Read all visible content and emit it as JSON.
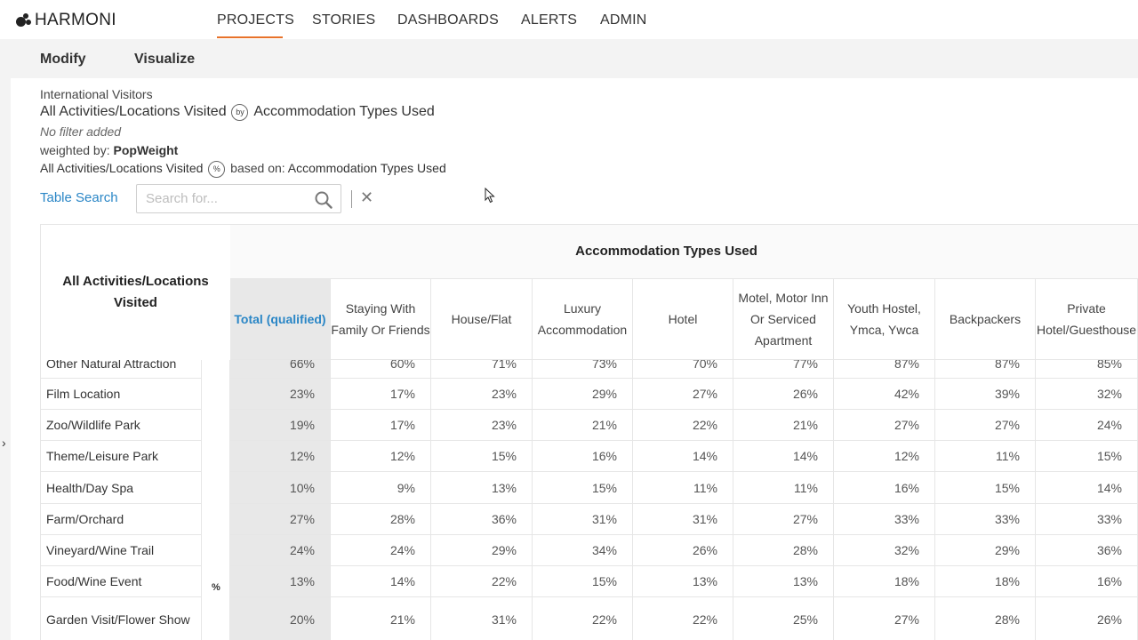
{
  "app": {
    "brand": "HARMONI",
    "accent_color": "#e8722a",
    "link_color": "#2a86c6"
  },
  "nav": {
    "items": [
      {
        "label": "PROJECTS",
        "active": true
      },
      {
        "label": "STORIES",
        "active": false
      },
      {
        "label": "DASHBOARDS",
        "active": false
      },
      {
        "label": "ALERTS",
        "active": false
      },
      {
        "label": "ADMIN",
        "active": false
      }
    ]
  },
  "toolbar": {
    "modify": "Modify",
    "visualize": "Visualize"
  },
  "meta": {
    "dataset": "International Visitors",
    "row_var": "All Activities/Locations Visited",
    "by_badge": "by",
    "col_var": "Accommodation Types Used",
    "filter_text": "No filter added",
    "weighted_label": "weighted by:",
    "weight": "PopWeight",
    "pct_row_var": "All Activities/Locations Visited",
    "pct_badge": "%",
    "based_on_label": "based on:",
    "based_on": "Accommodation Types Used"
  },
  "search": {
    "label": "Table Search",
    "placeholder": "Search for..."
  },
  "table": {
    "row_header": "All Activities/Locations Visited",
    "group_header": "Accommodation Types Used",
    "measure_label": "%",
    "columns": [
      "Total (qualified)",
      "Staying With Family Or Friends",
      "House/Flat",
      "Luxury Accommodation",
      "Hotel",
      "Motel, Motor Inn Or Serviced Apartment",
      "Youth Hostel, Ymca, Ywca",
      "Backpackers",
      "Private Hotel/Guesthouse"
    ],
    "rows": [
      {
        "label": "Other Natural Attraction",
        "values": [
          "66%",
          "60%",
          "71%",
          "73%",
          "70%",
          "77%",
          "87%",
          "87%",
          "85%"
        ]
      },
      {
        "label": "Film Location",
        "values": [
          "23%",
          "17%",
          "23%",
          "29%",
          "27%",
          "26%",
          "42%",
          "39%",
          "32%"
        ]
      },
      {
        "label": "Zoo/Wildlife Park",
        "values": [
          "19%",
          "17%",
          "23%",
          "21%",
          "22%",
          "21%",
          "27%",
          "27%",
          "24%"
        ]
      },
      {
        "label": "Theme/Leisure Park",
        "values": [
          "12%",
          "12%",
          "15%",
          "16%",
          "14%",
          "14%",
          "12%",
          "11%",
          "15%"
        ]
      },
      {
        "label": "Health/Day Spa",
        "values": [
          "10%",
          "9%",
          "13%",
          "15%",
          "11%",
          "11%",
          "16%",
          "15%",
          "14%"
        ]
      },
      {
        "label": "Farm/Orchard",
        "values": [
          "27%",
          "28%",
          "36%",
          "31%",
          "31%",
          "27%",
          "33%",
          "33%",
          "33%"
        ]
      },
      {
        "label": "Vineyard/Wine Trail",
        "values": [
          "24%",
          "24%",
          "29%",
          "34%",
          "26%",
          "28%",
          "32%",
          "29%",
          "36%"
        ]
      },
      {
        "label": "Food/Wine Event",
        "values": [
          "13%",
          "14%",
          "22%",
          "15%",
          "13%",
          "13%",
          "18%",
          "18%",
          "16%"
        ]
      },
      {
        "label": "Garden Visit/Flower Show",
        "values": [
          "20%",
          "21%",
          "31%",
          "22%",
          "22%",
          "25%",
          "27%",
          "28%",
          "26%"
        ]
      }
    ]
  }
}
